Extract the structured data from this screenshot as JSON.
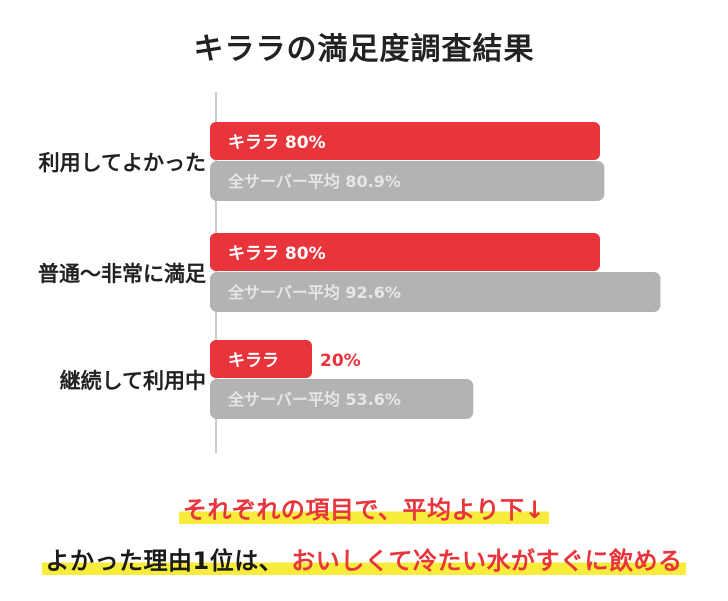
{
  "chart_data": {
    "type": "bar",
    "title": "キララの満足度調査結果",
    "categories": [
      "利用してよかった",
      "普通〜非常に満足",
      "継続して利用中"
    ],
    "series": [
      {
        "name": "キララ",
        "values": [
          80,
          80,
          20
        ],
        "color": "#e8343b",
        "labels": [
          "キララ 80%",
          "キララ 80%",
          "キララ"
        ],
        "outside_labels": [
          "",
          "",
          "20%"
        ]
      },
      {
        "name": "全サーバー平均",
        "values": [
          80.9,
          92.6,
          53.6
        ],
        "color": "#b3b3b3",
        "labels": [
          "全サーバー平均 80.9%",
          "全サーバー平均 92.6%",
          "全サーバー平均 53.6%"
        ]
      }
    ],
    "xlim": [
      0,
      100
    ],
    "grid": false,
    "legend": "none"
  },
  "footer": {
    "line1": "それぞれの項目で、平均より下↓",
    "line2_part1": "よかった理由1位は、",
    "line2_part2": "おいしくて冷たい水がすぐに飲める"
  }
}
